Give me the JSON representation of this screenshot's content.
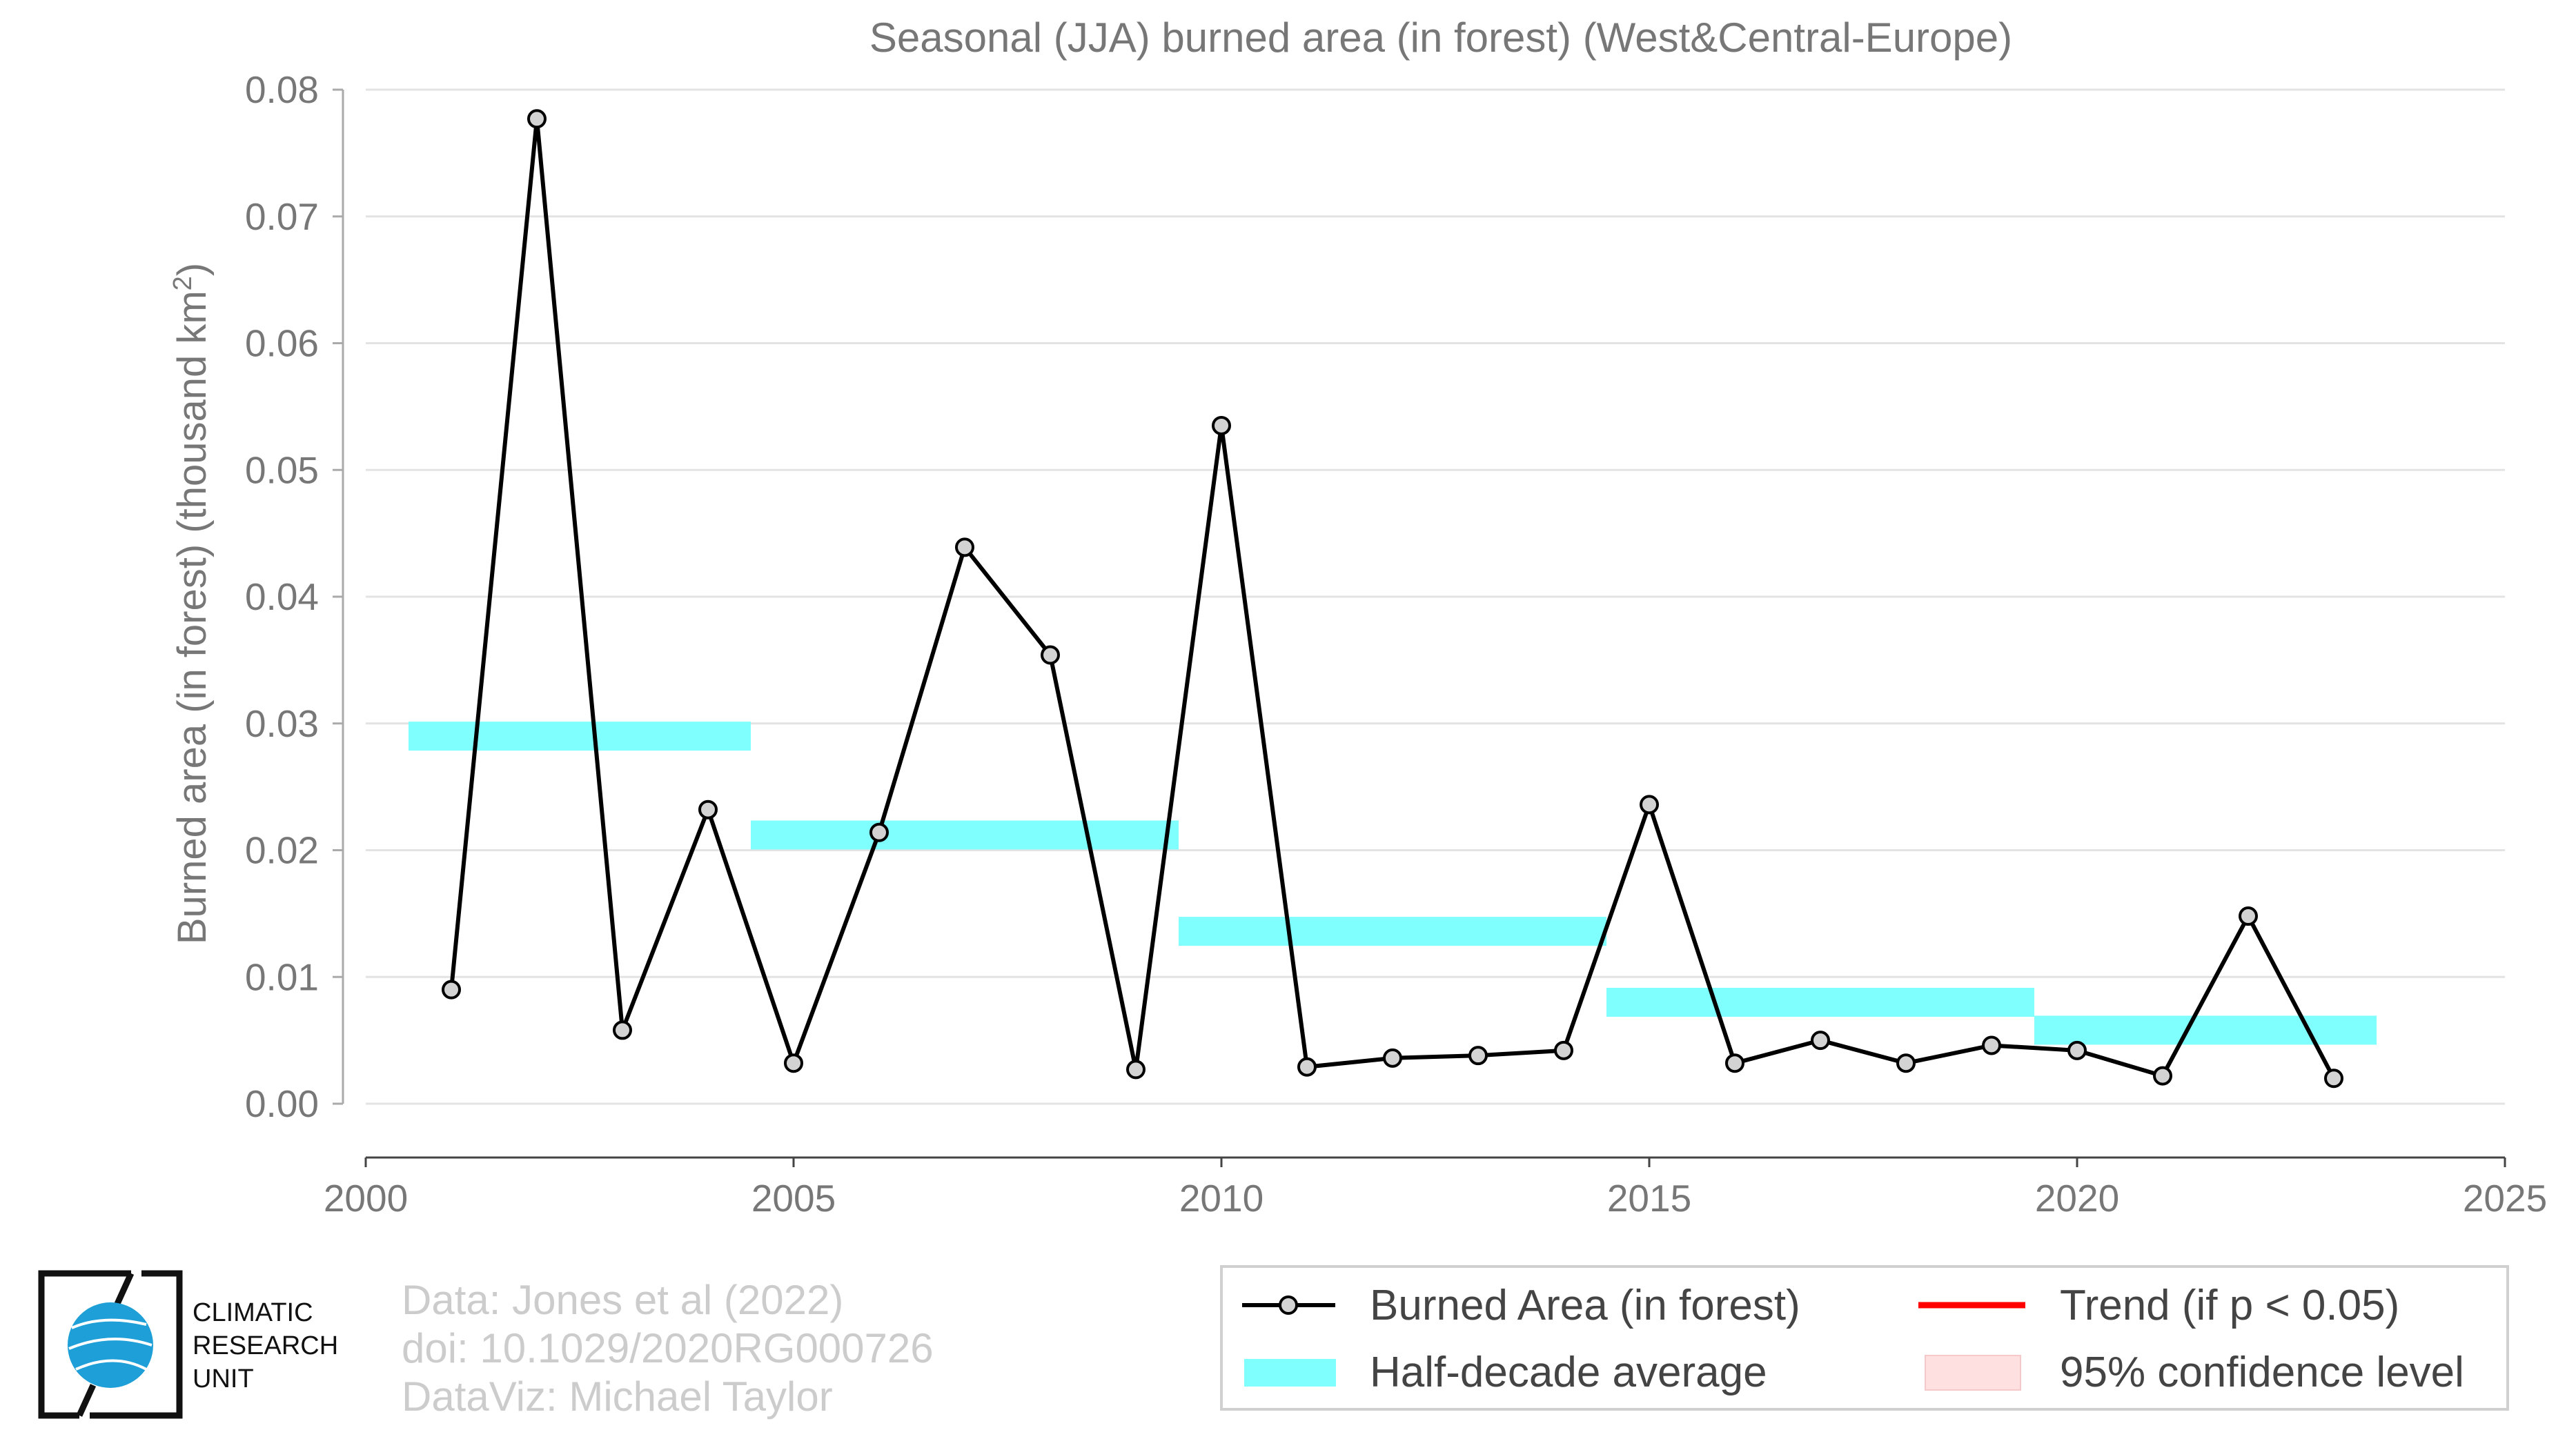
{
  "chart_data": {
    "type": "line",
    "title": "Seasonal (JJA) burned area (in forest) (West&Central-Europe)",
    "ylabel_main": "Burned area (in forest) (thousand km",
    "ylabel_sup": "2",
    "ylabel_end": ")",
    "xlim": [
      2000,
      2025
    ],
    "ylim": [
      0,
      0.08
    ],
    "xticks": [
      2000,
      2005,
      2010,
      2015,
      2020,
      2025
    ],
    "yticks": [
      0.0,
      0.01,
      0.02,
      0.03,
      0.04,
      0.05,
      0.06,
      0.07,
      0.08
    ],
    "ytick_labels": [
      "0.00",
      "0.01",
      "0.02",
      "0.03",
      "0.04",
      "0.05",
      "0.06",
      "0.07",
      "0.08"
    ],
    "grid": true,
    "series": [
      {
        "name": "Burned Area (in forest)",
        "x": [
          2001,
          2002,
          2003,
          2004,
          2005,
          2006,
          2007,
          2008,
          2009,
          2010,
          2011,
          2012,
          2013,
          2014,
          2015,
          2016,
          2017,
          2018,
          2019,
          2020,
          2021,
          2022,
          2023
        ],
        "y": [
          0.009,
          0.0777,
          0.0058,
          0.0232,
          0.0032,
          0.0214,
          0.0439,
          0.0354,
          0.0027,
          0.0535,
          0.0029,
          0.0036,
          0.0038,
          0.0042,
          0.0236,
          0.0032,
          0.005,
          0.0032,
          0.0046,
          0.0042,
          0.0022,
          0.0148,
          0.002
        ],
        "color": "#000000"
      }
    ],
    "half_decade_average": {
      "name": "Half-decade average",
      "color": "#80ffff",
      "segments": [
        {
          "x0": 2000.5,
          "x1": 2004.5,
          "y": 0.029
        },
        {
          "x0": 2004.5,
          "x1": 2009.5,
          "y": 0.0212
        },
        {
          "x0": 2009.5,
          "x1": 2014.5,
          "y": 0.0136
        },
        {
          "x0": 2014.5,
          "x1": 2019.5,
          "y": 0.008
        },
        {
          "x0": 2019.5,
          "x1": 2023.5,
          "y": 0.0058
        }
      ]
    },
    "legend": {
      "placement": "bottom-right",
      "items": [
        {
          "label": "Burned Area (in forest)",
          "kind": "line-marker",
          "color": "#000000"
        },
        {
          "label": "Trend (if p < 0.05)",
          "kind": "line",
          "color": "#ff0000"
        },
        {
          "label": "Half-decade average",
          "kind": "band",
          "color": "#80ffff"
        },
        {
          "label": "95% confidence level",
          "kind": "band",
          "color": "#ffe0e0"
        }
      ]
    }
  },
  "credits": {
    "line1": "Data: Jones et al (2022)",
    "line2": "doi: 10.1029/2020RG000726",
    "line3": "DataViz: Michael Taylor"
  },
  "logo": {
    "line1": "CLIMATIC",
    "line2": "RESEARCH",
    "line3": "UNIT",
    "globe_color": "#1e9fd8"
  }
}
